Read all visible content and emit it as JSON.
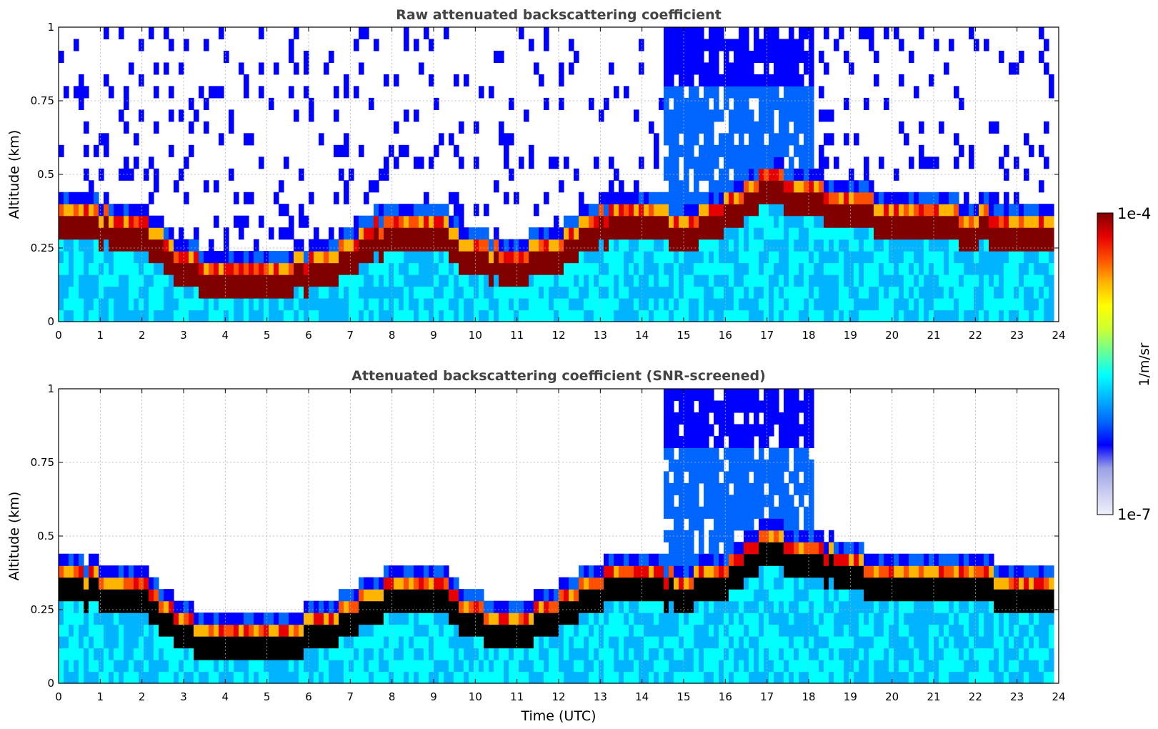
{
  "chart_data": [
    {
      "type": "heatmap",
      "title": "Raw attenuated backscattering coefficient",
      "xlabel": "",
      "ylabel": "Altitude (km)",
      "xlim": [
        0,
        24
      ],
      "ylim": [
        0,
        1
      ],
      "xticks": [
        "0",
        "1",
        "2",
        "3",
        "4",
        "5",
        "6",
        "7",
        "8",
        "9",
        "10",
        "11",
        "12",
        "13",
        "14",
        "15",
        "16",
        "17",
        "18",
        "19",
        "20",
        "21",
        "22",
        "23",
        "24"
      ],
      "yticks": [
        "0",
        "0.25",
        "0.5",
        "0.75",
        "1"
      ],
      "grid": true,
      "boundary_layer_top_km": {
        "time_utc": [
          0,
          1,
          2,
          3,
          4,
          5,
          6,
          7,
          8,
          9,
          10,
          11,
          12,
          13,
          14,
          15,
          16,
          17,
          18,
          19,
          20,
          21,
          22,
          23,
          23.8
        ],
        "altitude_km": [
          0.37,
          0.36,
          0.33,
          0.21,
          0.18,
          0.17,
          0.2,
          0.26,
          0.35,
          0.34,
          0.25,
          0.22,
          0.28,
          0.36,
          0.38,
          0.35,
          0.4,
          0.5,
          0.45,
          0.42,
          0.38,
          0.37,
          0.36,
          0.35,
          0.33
        ]
      },
      "colorscale": {
        "min": "1e-7",
        "max": "1e-4",
        "scale": "log",
        "colormap": "jet"
      }
    },
    {
      "type": "heatmap",
      "title": "Attenuated backscattering coefficient (SNR-screened)",
      "xlabel": "Time (UTC)",
      "ylabel": "Altitude (km)",
      "xlim": [
        0,
        24
      ],
      "ylim": [
        0,
        1
      ],
      "xticks": [
        "0",
        "1",
        "2",
        "3",
        "4",
        "5",
        "6",
        "7",
        "8",
        "9",
        "10",
        "11",
        "12",
        "13",
        "14",
        "15",
        "16",
        "17",
        "18",
        "19",
        "20",
        "21",
        "22",
        "23",
        "24"
      ],
      "yticks": [
        "0",
        "0.25",
        "0.5",
        "0.75",
        "1"
      ],
      "grid": true,
      "boundary_layer_top_km": {
        "time_utc": [
          0,
          1,
          2,
          3,
          4,
          5,
          6,
          7,
          8,
          9,
          10,
          11,
          12,
          13,
          14,
          15,
          16,
          17,
          18,
          19,
          20,
          21,
          22,
          23,
          23.8
        ],
        "altitude_km": [
          0.37,
          0.36,
          0.33,
          0.21,
          0.18,
          0.17,
          0.2,
          0.26,
          0.35,
          0.34,
          0.25,
          0.22,
          0.28,
          0.36,
          0.38,
          0.35,
          0.4,
          0.5,
          0.45,
          0.42,
          0.38,
          0.37,
          0.36,
          0.35,
          0.33
        ]
      },
      "colorscale": {
        "min": "1e-7",
        "max": "1e-4",
        "scale": "log",
        "colormap": "jet"
      }
    }
  ],
  "colorbar": {
    "max_label": "1e-4",
    "min_label": "1e-7",
    "unit_label": "1/m/sr",
    "colors": [
      "#eef0fb",
      "#c8cbf0",
      "#9aa0e6",
      "#0000ff",
      "#0066ff",
      "#00b4ff",
      "#00ffff",
      "#66ff99",
      "#ccff33",
      "#ffff00",
      "#ffb400",
      "#ff5000",
      "#e60000",
      "#800000"
    ]
  }
}
